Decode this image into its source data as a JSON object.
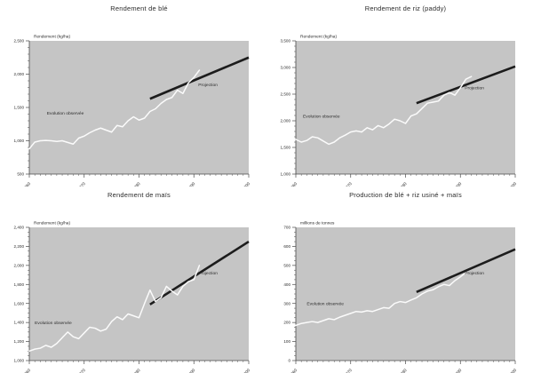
{
  "figure": {
    "background": "#ffffff",
    "plot_background": "#c5c5c5",
    "observed_color": "#fbfbfb",
    "projection_color": "#1c1c1c",
    "text_color": "#2b2b2b",
    "axis_color": "#4a4a4a"
  },
  "chart_data": [
    {
      "type": "line",
      "title": "Rendement de blé",
      "ylabel": "Rendement (kg/ha)",
      "xlim": [
        1960,
        2000
      ],
      "ylim": [
        500,
        2500
      ],
      "y_major_step": 500,
      "y_minor_step": 100,
      "x_major_step": 10,
      "x_minor_step": 1,
      "series": [
        {
          "name": "Evolution observée",
          "style": "observed",
          "x_start": 1960,
          "values": [
            880,
            980,
            1000,
            1005,
            1000,
            990,
            1000,
            975,
            950,
            1040,
            1070,
            1120,
            1160,
            1190,
            1160,
            1130,
            1230,
            1210,
            1300,
            1360,
            1310,
            1340,
            1440,
            1480,
            1560,
            1620,
            1650,
            1760,
            1710,
            1870,
            1950,
            2060
          ]
        },
        {
          "name": "Projection",
          "style": "projection",
          "x": [
            1982,
            2000
          ],
          "y": [
            1630,
            2250
          ]
        }
      ],
      "annotations": [
        {
          "text": "Evolution observée",
          "x": 1963.2,
          "y": 1395
        },
        {
          "text": "Projection",
          "x": 1990.8,
          "y": 1820
        }
      ]
    },
    {
      "type": "line",
      "title": "Rendement de riz (paddy)",
      "ylabel": "Rendement (kg/ha)",
      "xlim": [
        1960,
        2000
      ],
      "ylim": [
        1000,
        3500
      ],
      "y_major_step": 500,
      "y_minor_step": 100,
      "x_major_step": 10,
      "x_minor_step": 1,
      "series": [
        {
          "name": "Evolution observée",
          "style": "observed",
          "x_start": 1960,
          "values": [
            1650,
            1600,
            1630,
            1700,
            1680,
            1620,
            1560,
            1600,
            1680,
            1730,
            1790,
            1810,
            1790,
            1870,
            1830,
            1910,
            1870,
            1940,
            2030,
            2000,
            1950,
            2090,
            2130,
            2230,
            2330,
            2350,
            2370,
            2480,
            2530,
            2480,
            2620,
            2780,
            2830
          ]
        },
        {
          "name": "Projection",
          "style": "projection",
          "x": [
            1982,
            2000
          ],
          "y": [
            2330,
            3020
          ]
        }
      ],
      "annotations": [
        {
          "text": "Evolution observée",
          "x": 1961.3,
          "y": 2060
        },
        {
          "text": "Projection",
          "x": 1990.8,
          "y": 2590
        }
      ]
    },
    {
      "type": "line",
      "title": "Rendement de maïs",
      "ylabel": "Rendement (kg/ha)",
      "xlim": [
        1960,
        2000
      ],
      "ylim": [
        1000,
        2400
      ],
      "y_major_step": 200,
      "y_minor_step": 50,
      "x_major_step": 10,
      "x_minor_step": 1,
      "series": [
        {
          "name": "Evolution observée",
          "style": "observed",
          "x_start": 1960,
          "values": [
            1100,
            1120,
            1130,
            1160,
            1140,
            1180,
            1240,
            1300,
            1250,
            1230,
            1290,
            1350,
            1340,
            1310,
            1330,
            1410,
            1460,
            1430,
            1490,
            1470,
            1450,
            1600,
            1740,
            1620,
            1660,
            1780,
            1730,
            1690,
            1780,
            1830,
            1850,
            2000
          ]
        },
        {
          "name": "Projection",
          "style": "projection",
          "x": [
            1982,
            2000
          ],
          "y": [
            1590,
            2250
          ]
        }
      ],
      "annotations": [
        {
          "text": "Evolution observée",
          "x": 1961.0,
          "y": 1385
        },
        {
          "text": "Projection",
          "x": 1990.8,
          "y": 1905
        }
      ]
    },
    {
      "type": "line",
      "title": "Production de blé + riz usiné + maïs",
      "ylabel": "millions de tonnes",
      "xlim": [
        1960,
        2000
      ],
      "ylim": [
        0,
        700
      ],
      "y_major_step": 100,
      "y_minor_step": 25,
      "x_major_step": 10,
      "x_minor_step": 1,
      "series": [
        {
          "name": "Evolution observée",
          "style": "observed",
          "x_start": 1960,
          "values": [
            185,
            195,
            200,
            205,
            200,
            210,
            220,
            215,
            228,
            238,
            248,
            258,
            255,
            262,
            258,
            268,
            278,
            275,
            300,
            310,
            305,
            318,
            330,
            350,
            365,
            372,
            388,
            400,
            394,
            420,
            440,
            462
          ]
        },
        {
          "name": "Projection",
          "style": "projection",
          "x": [
            1982,
            2000
          ],
          "y": [
            360,
            585
          ]
        }
      ],
      "annotations": [
        {
          "text": "Evolution observée",
          "x": 1962.0,
          "y": 292
        },
        {
          "text": "Projection",
          "x": 1990.8,
          "y": 452
        }
      ]
    }
  ]
}
